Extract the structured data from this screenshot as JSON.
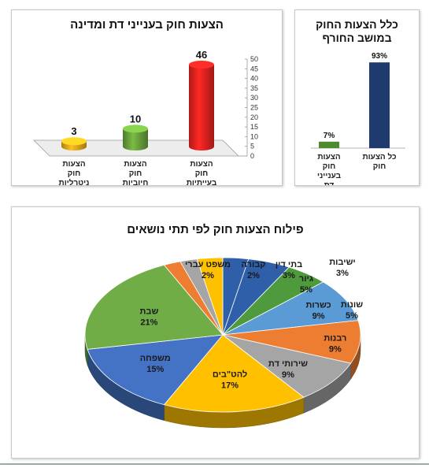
{
  "chart_data": [
    {
      "type": "bar",
      "title": "הצעות חוק בענייני דת ומדינה",
      "categories": [
        "הצעות חוק בעייתיות",
        "הצעות חוק חיוביות",
        "הצעות חוק ניטרליות"
      ],
      "values": [
        46,
        10,
        3
      ],
      "colors": [
        "#e8231f",
        "#6aa33c",
        "#e8a81c"
      ],
      "yticks": [
        0,
        5,
        10,
        15,
        20,
        25,
        30,
        35,
        40,
        45,
        50
      ],
      "ylim": [
        0,
        50
      ],
      "grid": false,
      "legend": "none"
    },
    {
      "type": "bar",
      "title": "כלל הצעות החוק במושב החורף",
      "categories": [
        "כל הצעות חוק",
        "הצעות חוק בענייני דת ומדינה"
      ],
      "values": [
        93,
        7
      ],
      "labels": [
        "93%",
        "7%"
      ],
      "colors": [
        "#1f3a6e",
        "#4e8a2e"
      ],
      "grid": false,
      "legend": "none"
    },
    {
      "type": "pie",
      "title": "פילוח הצעות חוק לפי תתי נושאים",
      "labels": [
        "ישיבות",
        "גיור",
        "שונות",
        "כשרות",
        "רבנות",
        "שירותי דת",
        "להט\"בים",
        "משפחה",
        "שבת",
        "משפט עברי",
        "קבורה",
        "בתי דין"
      ],
      "values": [
        3,
        5,
        5,
        9,
        9,
        9,
        17,
        15,
        21,
        2,
        2,
        3
      ],
      "value_labels": [
        "3%",
        "5%",
        "5%",
        "9%",
        "9%",
        "9%",
        "17%",
        "15%",
        "21%",
        "2%",
        "2%",
        "3%"
      ],
      "colors": [
        "#2e5fa8",
        "#2e5fa8",
        "#4e9a3c",
        "#5b9bd5",
        "#ed7d31",
        "#a5a5a5",
        "#ffc000",
        "#4472c4",
        "#70ad47",
        "#ed7d31",
        "#a5a5a5",
        "#ffc000"
      ],
      "legend": "none"
    }
  ]
}
